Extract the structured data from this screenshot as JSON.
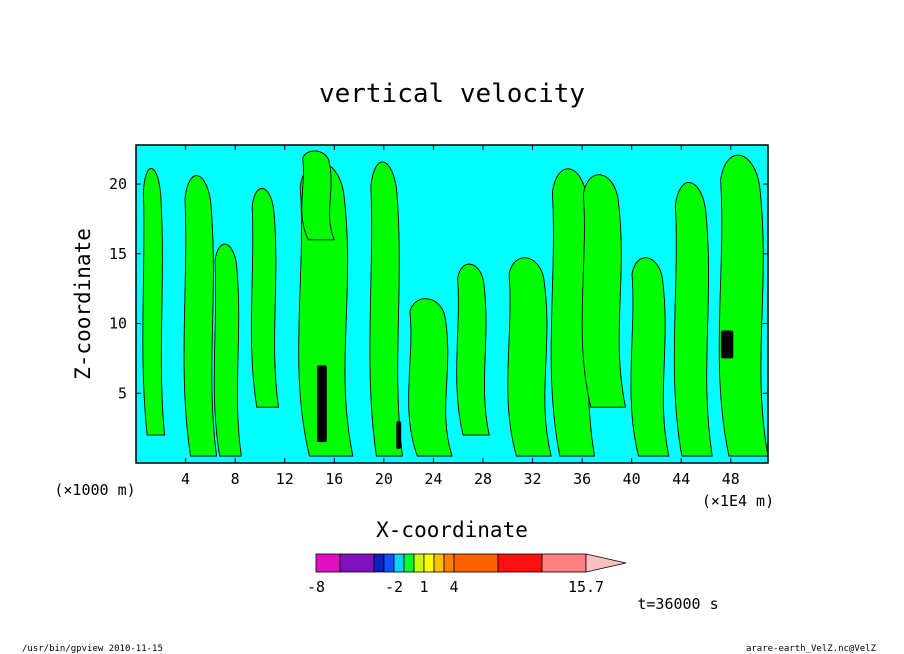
{
  "chart_data": {
    "type": "heatmap",
    "title": "vertical velocity",
    "xlabel": "X-coordinate",
    "ylabel": "Z-coordinate",
    "x_unit_left": "(×1000 m)",
    "x_unit_right": "(×1E4 m)",
    "xlim": [
      0,
      51
    ],
    "ylim": [
      0,
      22.8
    ],
    "x_ticks": [
      4,
      8,
      12,
      16,
      20,
      24,
      28,
      32,
      36,
      40,
      44,
      48
    ],
    "y_ticks": [
      5,
      10,
      15,
      20
    ],
    "time_label": "t=36000 s",
    "footer_left": "/usr/bin/gpview   2010-11-15",
    "footer_right": "arare-earth_VelZ.nc@VelZ",
    "colorbar": {
      "levels": [
        -8,
        -6,
        -4,
        -3,
        -2,
        -1,
        0,
        1,
        2,
        3,
        4,
        8,
        12,
        15.7
      ],
      "labels": [
        "-8",
        "-2",
        "1",
        "4",
        "15.7"
      ],
      "label_levels": [
        -8,
        -2,
        1,
        4,
        15.7
      ],
      "colors": [
        "#e010c0",
        "#8010c0",
        "#1020c0",
        "#1050ff",
        "#10d0ff",
        "#00ff30",
        "#c8ff00",
        "#ffff00",
        "#ffc000",
        "#ff8000",
        "#ff6000",
        "#ff1010",
        "#ff8080",
        "#ffc0c0"
      ]
    },
    "field_colors": {
      "negative": "#00ffff",
      "positive": "#00ff00",
      "strong": "#000000"
    },
    "positive_regions": [
      {
        "x": [
          0.3,
          2.3
        ],
        "z": [
          2.0,
          21.5
        ]
      },
      {
        "x": [
          3.5,
          6.5
        ],
        "z": [
          0.5,
          21.0
        ]
      },
      {
        "x": [
          6.0,
          8.5
        ],
        "z": [
          0.5,
          16.0
        ]
      },
      {
        "x": [
          9.0,
          11.5
        ],
        "z": [
          4.0,
          20.0
        ]
      },
      {
        "x": [
          12.5,
          17.5
        ],
        "z": [
          0.5,
          22.0
        ]
      },
      {
        "x": [
          13.0,
          16.0
        ],
        "z": [
          16.0,
          22.5
        ]
      },
      {
        "x": [
          18.5,
          21.5
        ],
        "z": [
          0.5,
          22.0
        ]
      },
      {
        "x": [
          21.5,
          25.5
        ],
        "z": [
          0.5,
          12.0
        ]
      },
      {
        "x": [
          25.5,
          28.5
        ],
        "z": [
          2.0,
          14.5
        ]
      },
      {
        "x": [
          29.5,
          33.5
        ],
        "z": [
          0.5,
          15.0
        ]
      },
      {
        "x": [
          33.0,
          37.0
        ],
        "z": [
          0.5,
          21.5
        ]
      },
      {
        "x": [
          35.5,
          39.5
        ],
        "z": [
          4.0,
          21.0
        ]
      },
      {
        "x": [
          39.5,
          43.0
        ],
        "z": [
          0.5,
          15.0
        ]
      },
      {
        "x": [
          43.0,
          46.5
        ],
        "z": [
          0.5,
          20.5
        ]
      },
      {
        "x": [
          46.5,
          51.0
        ],
        "z": [
          0.5,
          22.5
        ]
      }
    ],
    "strong_regions": [
      {
        "x": [
          14.6,
          15.4
        ],
        "z": [
          1.5,
          7.0
        ]
      },
      {
        "x": [
          47.2,
          48.2
        ],
        "z": [
          7.5,
          9.5
        ]
      },
      {
        "x": [
          21.0,
          21.4
        ],
        "z": [
          1.0,
          3.0
        ]
      }
    ]
  }
}
